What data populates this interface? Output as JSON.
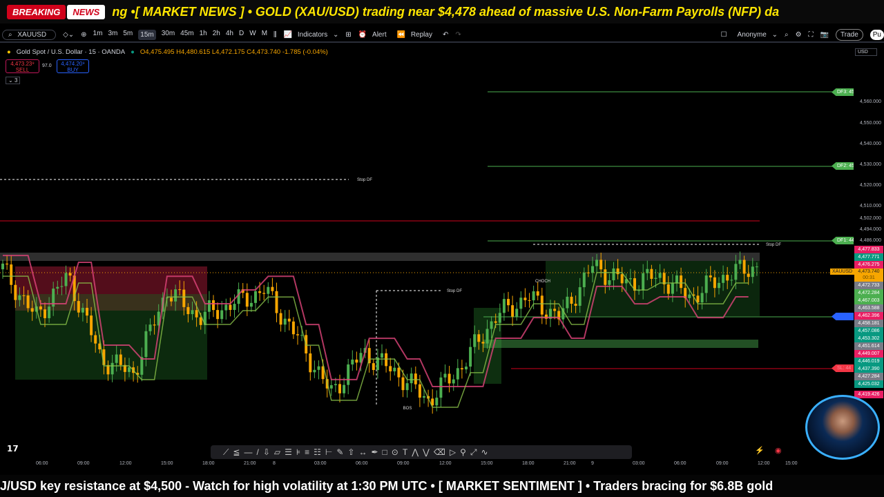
{
  "ticker_top": {
    "badge1": "BREAKING",
    "badge2": "NEWS",
    "text": "ng •[ MARKET NEWS ] • GOLD (XAU/USD) trading near $4,478 ahead of massive U.S. Non-Farm Payrolls (NFP) da"
  },
  "toolbar": {
    "symbol": "XAUUSD",
    "timeframes": [
      "1m",
      "3m",
      "5m",
      "15m",
      "30m",
      "45m",
      "1h",
      "2h",
      "4h",
      "D",
      "W",
      "M"
    ],
    "active_timeframe": "15m",
    "indicators": "Indicators",
    "alert": "Alert",
    "replay": "Replay",
    "account": "Anonyme",
    "trade": "Trade",
    "publish": "Pu"
  },
  "legend": {
    "title": "Gold Spot / U.S. Dollar · 15 · OANDA",
    "ohlc": "O4,475.495 H4,480.615 L4,472.175 C4,473.740 -1.785 (-0.04%)"
  },
  "order": {
    "sell_price": "4,473.23⁹",
    "sell": "SELL",
    "spread": "97.0",
    "buy_price": "4,474.20⁹",
    "buy": "BUY",
    "indicators_count": "3"
  },
  "price_axis": {
    "currency": "USD",
    "ticks": [
      "4,560.000",
      "4,550.000",
      "4,540.000",
      "4,530.000",
      "4,520.000",
      "4,510.000",
      "4,502.000",
      "4,494.000",
      "4,486.000"
    ],
    "boxes": [
      {
        "v": "4,477.833",
        "c": "#e91e63"
      },
      {
        "v": "4,477.771",
        "c": "#089981"
      },
      {
        "v": "4,476.275",
        "c": "#e91e63"
      },
      {
        "v": "4,473.740",
        "c": "#f7a600"
      },
      {
        "v": "4,472.733",
        "c": "#787b86"
      },
      {
        "v": "4,472.284",
        "c": "#4caf50"
      },
      {
        "v": "4,467.003",
        "c": "#4caf50"
      },
      {
        "v": "4,463.588",
        "c": "#787b86"
      },
      {
        "v": "4,462.396",
        "c": "#e91e63"
      },
      {
        "v": "4,458.181",
        "c": "#787b86"
      },
      {
        "v": "4,457.086",
        "c": "#089981"
      },
      {
        "v": "4,453.302",
        "c": "#089981"
      },
      {
        "v": "4,451.614",
        "c": "#787b86"
      },
      {
        "v": "4,449.007",
        "c": "#e91e63"
      },
      {
        "v": "4,446.019",
        "c": "#089981"
      },
      {
        "v": "4,437.390",
        "c": "#089981"
      },
      {
        "v": "4,427.284",
        "c": "#787b86"
      },
      {
        "v": "4,425.032",
        "c": "#089981"
      },
      {
        "v": "4,419.426",
        "c": "#e91e63"
      }
    ],
    "symbol_label": "XAUUSD",
    "countdown": "00:31"
  },
  "levels": {
    "df3": "DF3: 45",
    "df2": "DF2: 45",
    "df1": "DF1: 44",
    "sl": "SL: 44",
    "stop_df": "Stop DF",
    "choch": "CHOCH",
    "bos": "BOS"
  },
  "time_axis": [
    "06:00",
    "09:00",
    "12:00",
    "15:00",
    "18:00",
    "21:00",
    "8",
    "03:00",
    "06:00",
    "09:00",
    "12:00",
    "15:00",
    "18:00",
    "21:00",
    "9",
    "03:00",
    "06:00",
    "09:00",
    "12:00",
    "15:00"
  ],
  "chart_data": {
    "type": "candlestick",
    "symbol": "XAUUSD",
    "key_closes": [
      4472,
      4446.5,
      4468.4,
      4424.6,
      4417.3,
      4461,
      4446.5,
      4453.8,
      4461,
      4435.5,
      4406.4,
      4428.2,
      4417.3,
      4402.7,
      4421,
      4446.5,
      4457.4,
      4446.5,
      4473.9,
      4464.7,
      4468.4,
      4457.4,
      4468.4,
      4473.7
    ],
    "last": 4473.74
  },
  "ticker_bot": {
    "text": "J/USD key resistance at $4,500 - Watch for high volatility at 1:30 PM UTC • [ MARKET SENTIMENT ] • Traders bracing for $6.8B gold"
  },
  "colors": {
    "up": "#4caf50",
    "down": "#f7a600",
    "zone_red": "#b71c3c",
    "zone_green": "#1b5e20"
  }
}
